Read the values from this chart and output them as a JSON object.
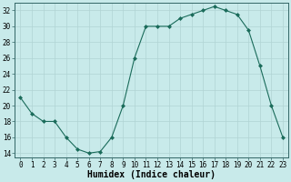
{
  "x": [
    0,
    1,
    2,
    3,
    4,
    5,
    6,
    7,
    8,
    9,
    10,
    11,
    12,
    13,
    14,
    15,
    16,
    17,
    18,
    19,
    20,
    21,
    22,
    23
  ],
  "y": [
    21,
    19,
    18,
    18,
    16,
    14.5,
    14,
    14.2,
    16,
    20,
    26,
    30,
    30,
    30,
    31,
    31.5,
    32,
    32.5,
    32,
    31.5,
    29.5,
    25,
    20,
    16
  ],
  "line_color": "#1a6b5a",
  "marker": "D",
  "marker_size": 2,
  "bg_color": "#c8eaea",
  "grid_color": "#b0d4d4",
  "xlabel": "Humidex (Indice chaleur)",
  "xlim": [
    -0.5,
    23.5
  ],
  "ylim": [
    13.5,
    33.0
  ],
  "yticks": [
    14,
    16,
    18,
    20,
    22,
    24,
    26,
    28,
    30,
    32
  ],
  "xticks": [
    0,
    1,
    2,
    3,
    4,
    5,
    6,
    7,
    8,
    9,
    10,
    11,
    12,
    13,
    14,
    15,
    16,
    17,
    18,
    19,
    20,
    21,
    22,
    23
  ],
  "tick_label_fontsize": 5.5,
  "xlabel_fontsize": 7.0,
  "linewidth": 0.8
}
